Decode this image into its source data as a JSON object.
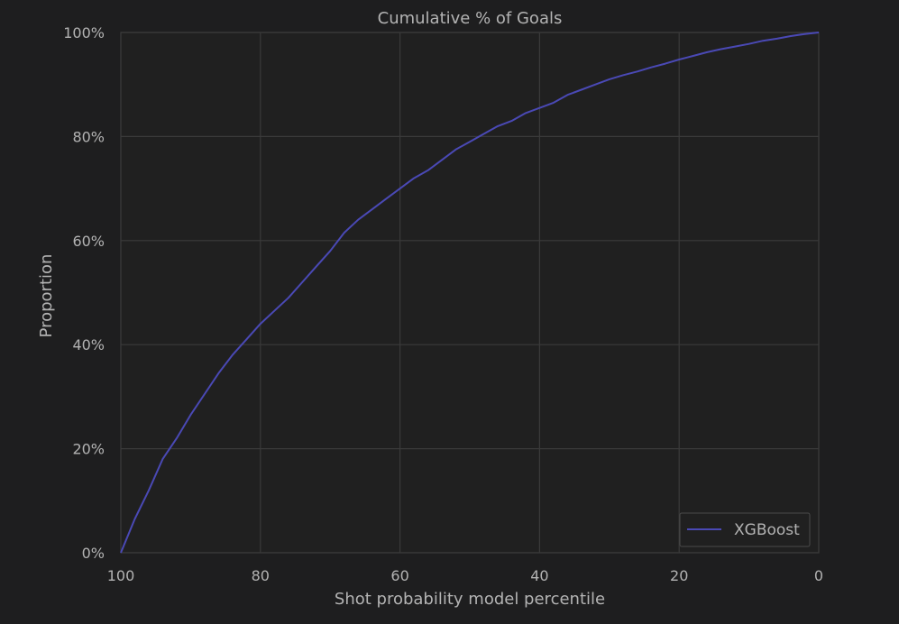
{
  "chart_data": {
    "type": "line",
    "title": "Cumulative % of Goals",
    "xlabel": "Shot probability model percentile",
    "ylabel": "Proportion",
    "xlim": [
      100,
      0
    ],
    "ylim": [
      0,
      100
    ],
    "x_ticks": [
      100,
      80,
      60,
      40,
      20,
      0
    ],
    "x_tick_labels": [
      "100",
      "80",
      "60",
      "40",
      "20",
      "0"
    ],
    "y_ticks": [
      0,
      20,
      40,
      60,
      80,
      100
    ],
    "y_tick_labels": [
      "0%",
      "20%",
      "40%",
      "60%",
      "80%",
      "100%"
    ],
    "grid": true,
    "legend_position": "lower-right",
    "series": [
      {
        "name": "XGBoost",
        "color": "#4a49b5",
        "x": [
          100,
          98,
          96,
          94,
          92,
          90,
          88,
          86,
          84,
          82,
          80,
          78,
          76,
          74,
          72,
          70,
          68,
          66,
          64,
          62,
          60,
          58,
          56,
          54,
          52,
          50,
          48,
          46,
          44,
          42,
          40,
          38,
          36,
          34,
          32,
          30,
          28,
          26,
          24,
          22,
          20,
          18,
          16,
          14,
          12,
          10,
          8,
          6,
          4,
          2,
          0
        ],
        "y": [
          0,
          6.5,
          12,
          18,
          22,
          26.5,
          30.5,
          34.5,
          38,
          41,
          44,
          46.5,
          49,
          52,
          55,
          58,
          61.5,
          64,
          66,
          68,
          70,
          72,
          73.5,
          75.5,
          77.5,
          79,
          80.5,
          82,
          83,
          84.5,
          85.5,
          86.5,
          88,
          89,
          90,
          91,
          91.8,
          92.5,
          93.3,
          94,
          94.8,
          95.5,
          96.2,
          96.8,
          97.3,
          97.8,
          98.4,
          98.8,
          99.3,
          99.7,
          100
        ]
      }
    ]
  }
}
